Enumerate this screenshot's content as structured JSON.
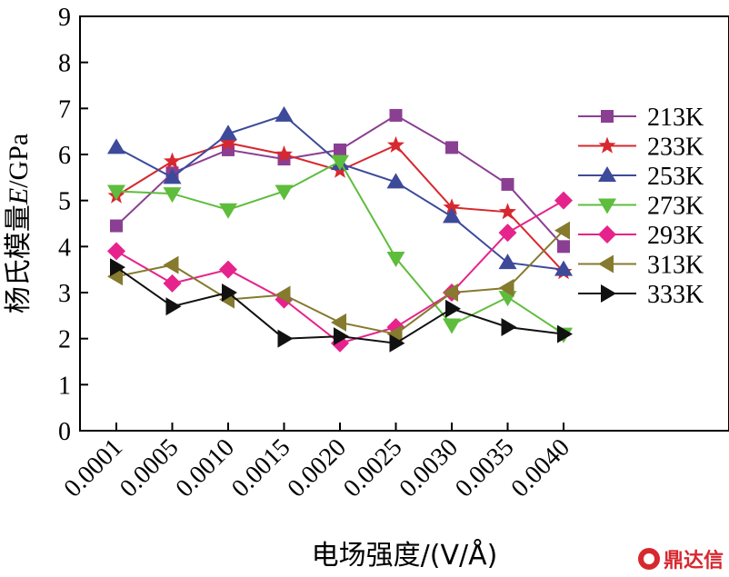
{
  "chart_data": {
    "type": "line",
    "title": "",
    "xlabel": "电场强度/(V/Å)",
    "ylabel_prefix": "杨氏模量",
    "ylabel_var": "E",
    "ylabel_suffix": "/GPa",
    "ylim": [
      0,
      9
    ],
    "yticks": [
      0,
      1,
      2,
      3,
      4,
      5,
      6,
      7,
      8,
      9
    ],
    "categories": [
      "0.0001",
      "0.0005",
      "0.0010",
      "0.0015",
      "0.0020",
      "0.0025",
      "0.0030",
      "0.0035",
      "0.0040"
    ],
    "legend_position": "right",
    "grid": false,
    "series": [
      {
        "name": "213K",
        "color": "#8b3f92",
        "marker": "square",
        "values": [
          4.45,
          5.6,
          6.1,
          5.9,
          6.1,
          6.85,
          6.15,
          5.35,
          4.0
        ]
      },
      {
        "name": "233K",
        "color": "#d7282f",
        "marker": "star",
        "values": [
          5.1,
          5.85,
          6.25,
          6.0,
          5.65,
          6.2,
          4.85,
          4.75,
          3.45
        ]
      },
      {
        "name": "253K",
        "color": "#3d4a9a",
        "marker": "triangle-up",
        "values": [
          6.15,
          5.5,
          6.45,
          6.85,
          5.8,
          5.4,
          4.65,
          3.65,
          3.5
        ]
      },
      {
        "name": "273K",
        "color": "#5ebd3c",
        "marker": "triangle-down",
        "values": [
          5.2,
          5.15,
          4.8,
          5.2,
          5.85,
          3.75,
          2.3,
          2.9,
          2.1
        ]
      },
      {
        "name": "293K",
        "color": "#e6238c",
        "marker": "diamond",
        "values": [
          3.9,
          3.2,
          3.5,
          2.85,
          1.9,
          2.25,
          3.0,
          4.3,
          5.0
        ]
      },
      {
        "name": "313K",
        "color": "#857a2e",
        "marker": "triangle-left",
        "values": [
          3.35,
          3.6,
          2.85,
          2.95,
          2.35,
          2.1,
          3.0,
          3.1,
          4.35
        ]
      },
      {
        "name": "333K",
        "color": "#111111",
        "marker": "triangle-right",
        "values": [
          3.55,
          2.7,
          3.0,
          2.0,
          2.05,
          1.9,
          2.65,
          2.25,
          2.1
        ]
      }
    ]
  },
  "watermark": {
    "text": "鼎达信",
    "icon": "logo-icon"
  }
}
